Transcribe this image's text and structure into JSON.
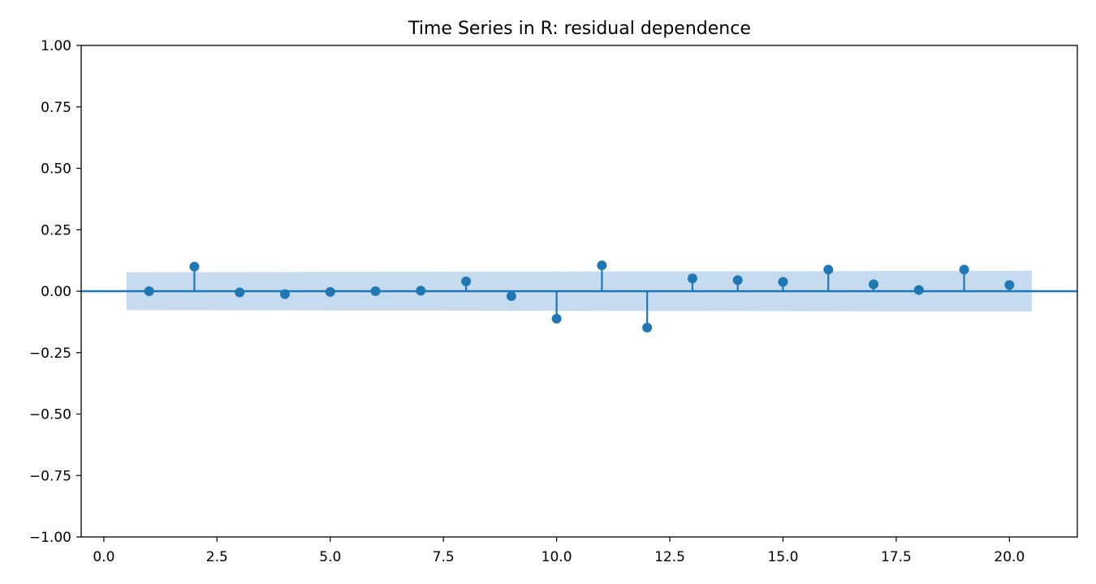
{
  "chart_data": {
    "type": "stem",
    "title": "Time Series in R: residual dependence",
    "xlabel": "",
    "ylabel": "",
    "xlim": [
      -0.5,
      21.5
    ],
    "ylim": [
      -1.0,
      1.0
    ],
    "x_ticks": [
      0.0,
      2.5,
      5.0,
      7.5,
      10.0,
      12.5,
      15.0,
      17.5,
      20.0
    ],
    "x_tick_labels": [
      "0.0",
      "2.5",
      "5.0",
      "7.5",
      "10.0",
      "12.5",
      "15.0",
      "17.5",
      "20.0"
    ],
    "y_ticks": [
      1.0,
      0.75,
      0.5,
      0.25,
      0.0,
      -0.25,
      -0.5,
      -0.75,
      -1.0
    ],
    "y_tick_labels": [
      "1.00",
      "0.75",
      "0.50",
      "0.25",
      "0.00",
      "−0.25",
      "−0.50",
      "−0.75",
      "−1.00"
    ],
    "grid": false,
    "colors": {
      "series": "#1f77b4",
      "band": "#c6dbef"
    },
    "series": [
      {
        "x": [
          1,
          2,
          3,
          4,
          5,
          6,
          7,
          8,
          9,
          10,
          11,
          12,
          13,
          14,
          15,
          16,
          17,
          18,
          19,
          20
        ],
        "values": [
          0.0,
          0.1,
          -0.005,
          -0.012,
          -0.003,
          0.0,
          0.002,
          0.04,
          -0.02,
          -0.112,
          0.105,
          -0.148,
          0.052,
          0.045,
          0.038,
          0.088,
          0.028,
          0.005,
          0.088,
          0.025
        ]
      }
    ],
    "confidence_band": {
      "x_start": 0.5,
      "x_end": 20.5,
      "upper_start": 0.077,
      "upper_end": 0.083,
      "lower_start": -0.077,
      "lower_end": -0.083
    }
  }
}
